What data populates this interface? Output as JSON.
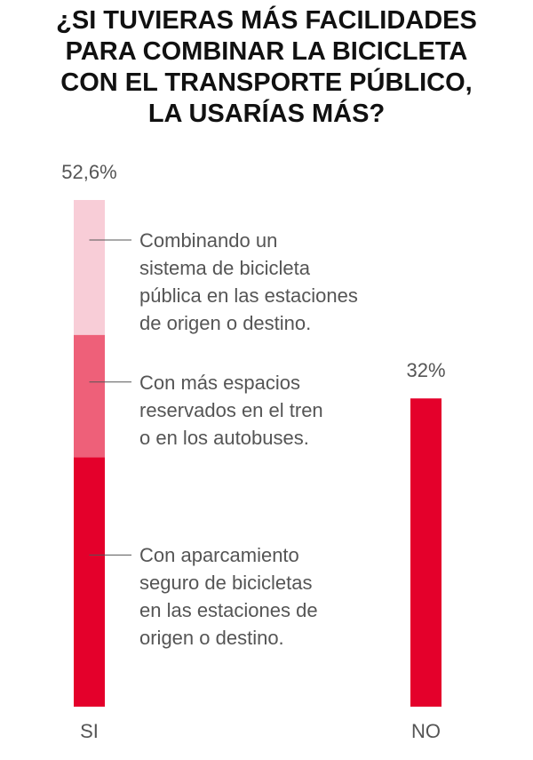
{
  "chart_data": {
    "type": "stacked_bar",
    "title": [
      "¿SI TUVIERAS MÁS FACILIDADES",
      "PARA COMBINAR LA BICICLETA",
      "CON EL TRANSPORTE PÚBLICO,",
      "LA USARÍAS MÁS?"
    ],
    "categories": [
      "SI",
      "NO"
    ],
    "values": [
      52.6,
      32
    ],
    "value_labels": [
      "52,6%",
      "32%"
    ],
    "color": "#e4002b",
    "segments": [
      {
        "name": "Con aparcamiento\nseguro de bicicletas\nen las estaciones de\norigen o destino.",
        "color": "#e4002b",
        "value": 25.9
      },
      {
        "name": "Con más espacios\nreservados en el tren\no en los autobuses.",
        "color": "#ee6079",
        "value": 12.7
      },
      {
        "name": "Combinando un\nsistema de bicicleta\npública en las estaciones\nde origen o destino.",
        "color": "#f8cdd7",
        "value": 14.0
      }
    ]
  }
}
